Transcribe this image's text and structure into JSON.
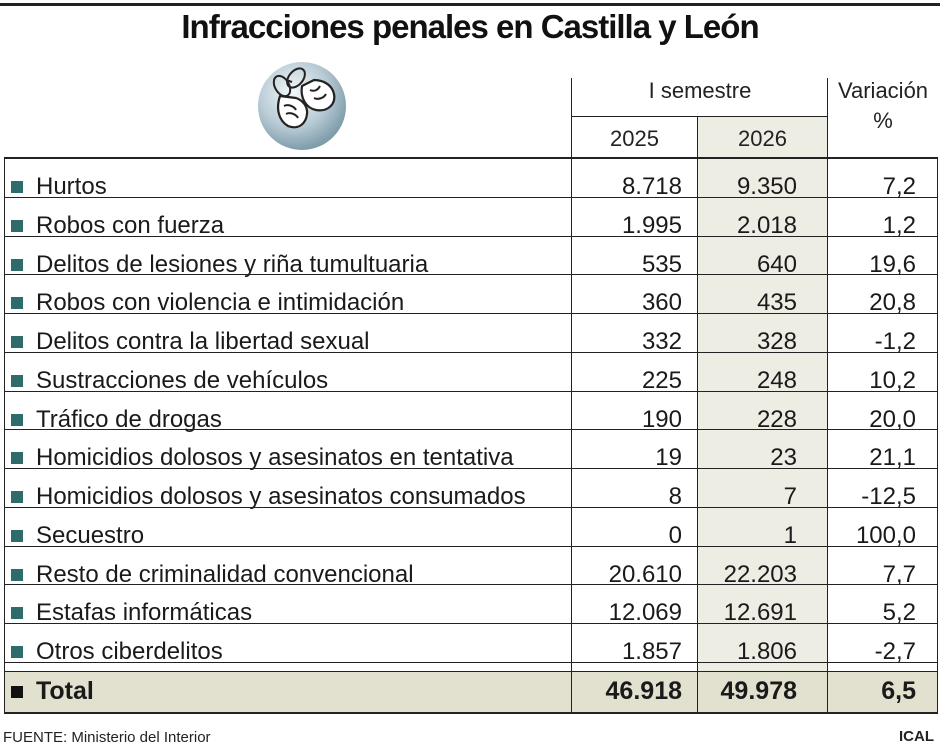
{
  "title": "Infracciones penales en Castilla y León",
  "header": {
    "group_label": "I semestre",
    "year1": "2025",
    "year2": "2026",
    "variation_line1": "Variación",
    "variation_line2": "%"
  },
  "icon": "handcuffed-fists-icon",
  "colors": {
    "bullet": "#2e6b6b",
    "shaded_column": "#eeede4",
    "total_row": "#e2e0cf"
  },
  "chart_data": {
    "type": "table",
    "title": "Infracciones penales en Castilla y León",
    "columns": [
      "2025",
      "2026",
      "Variación %"
    ],
    "rows": [
      {
        "label": "Hurtos",
        "v2025": "8.718",
        "v2026": "9.350",
        "var": "7,2"
      },
      {
        "label": "Robos con fuerza",
        "v2025": "1.995",
        "v2026": "2.018",
        "var": "1,2"
      },
      {
        "label": "Delitos de lesiones y riña tumultuaria",
        "v2025": "535",
        "v2026": "640",
        "var": "19,6"
      },
      {
        "label": "Robos con violencia e intimidación",
        "v2025": "360",
        "v2026": "435",
        "var": "20,8"
      },
      {
        "label": "Delitos contra la libertad sexual",
        "v2025": "332",
        "v2026": "328",
        "var": "-1,2"
      },
      {
        "label": "Sustracciones de vehículos",
        "v2025": "225",
        "v2026": "248",
        "var": "10,2"
      },
      {
        "label": "Tráfico de drogas",
        "v2025": "190",
        "v2026": "228",
        "var": "20,0"
      },
      {
        "label": "Homicidios dolosos y asesinatos en tentativa",
        "v2025": "19",
        "v2026": "23",
        "var": "21,1"
      },
      {
        "label": "Homicidios dolosos y asesinatos consumados",
        "v2025": "8",
        "v2026": "7",
        "var": "-12,5"
      },
      {
        "label": "Secuestro",
        "v2025": "0",
        "v2026": "1",
        "var": "100,0"
      },
      {
        "label": "Resto de criminalidad convencional",
        "v2025": "20.610",
        "v2026": "22.203",
        "var": "7,7"
      },
      {
        "label": "Estafas informáticas",
        "v2025": "12.069",
        "v2026": "12.691",
        "var": "5,2"
      },
      {
        "label": "Otros ciberdelitos",
        "v2025": "1.857",
        "v2026": "1.806",
        "var": "-2,7"
      }
    ],
    "total": {
      "label": "Total",
      "v2025": "46.918",
      "v2026": "49.978",
      "var": "6,5"
    }
  },
  "footer": {
    "source": "FUENTE: Ministerio del Interior",
    "credit": "ICAL"
  }
}
